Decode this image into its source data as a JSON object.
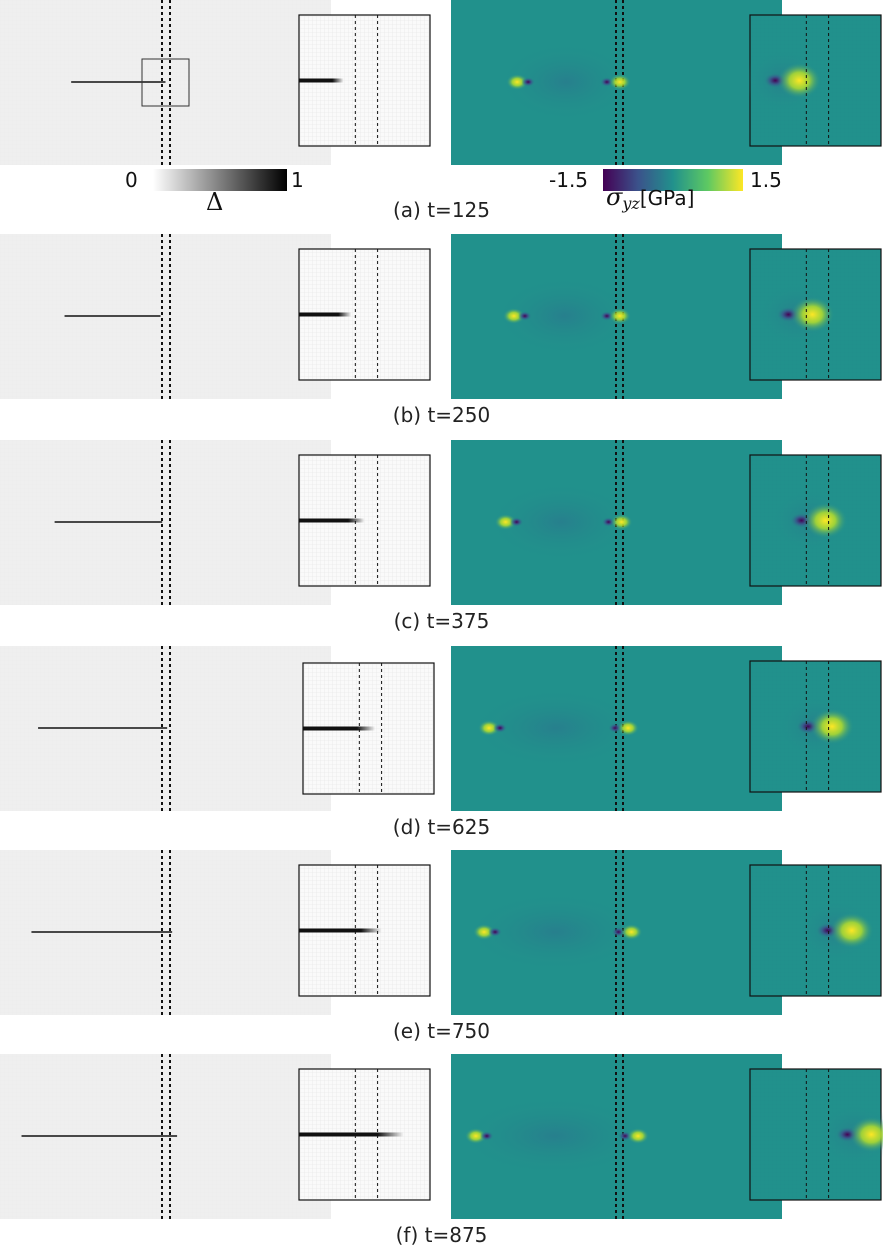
{
  "figure": {
    "panels": [
      {
        "label": "(a) t=125",
        "crack_left": 0.215,
        "crack_right": 0.5,
        "zoom_crack_end": 0.34,
        "stress_left_tip": 0.2,
        "stress_right_tip": 0.495,
        "zoom_tip": 0.3
      },
      {
        "label": "(b) t=250",
        "crack_left": 0.195,
        "crack_right": 0.485,
        "zoom_crack_end": 0.4,
        "stress_left_tip": 0.19,
        "stress_right_tip": 0.495,
        "zoom_tip": 0.4
      },
      {
        "label": "(c) t=375",
        "crack_left": 0.165,
        "crack_right": 0.49,
        "zoom_crack_end": 0.5,
        "stress_left_tip": 0.165,
        "stress_right_tip": 0.5,
        "zoom_tip": 0.5
      },
      {
        "label": "(d) t=625",
        "crack_left": 0.115,
        "crack_right": 0.505,
        "zoom_crack_end": 0.55,
        "stress_left_tip": 0.115,
        "stress_right_tip": 0.52,
        "zoom_tip": 0.55
      },
      {
        "label": "(e) t=750",
        "crack_left": 0.095,
        "crack_right": 0.52,
        "zoom_crack_end": 0.63,
        "stress_left_tip": 0.1,
        "stress_right_tip": 0.53,
        "zoom_tip": 0.7
      },
      {
        "label": "(f) t=875",
        "crack_left": 0.065,
        "crack_right": 0.535,
        "zoom_crack_end": 0.8,
        "stress_left_tip": 0.075,
        "stress_right_tip": 0.55,
        "zoom_tip": 0.85
      }
    ],
    "damage_colorbar": {
      "min_label": "0",
      "max_label": "1",
      "title": "Δ"
    },
    "stress_colorbar": {
      "min_label": "-1.5",
      "max_label": "1.5",
      "title_symbol": "σ",
      "title_sub": "yz",
      "title_unit": "[GPa]"
    },
    "colors": {
      "field_bg": "#21918c",
      "damage_bg": "#efefef",
      "crack": "#111111",
      "tip_hot": "#fde725",
      "tip_cold": "#440154"
    }
  }
}
